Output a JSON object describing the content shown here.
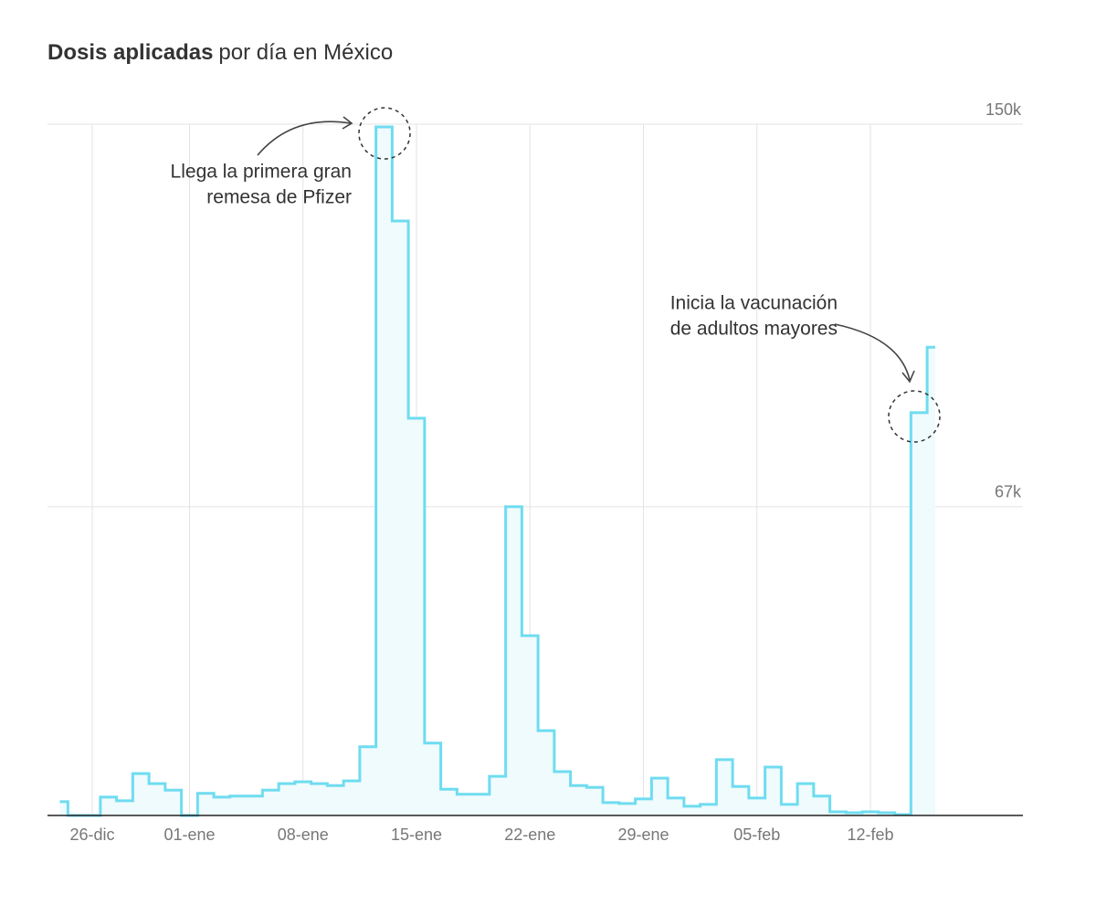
{
  "chart_data": {
    "type": "step",
    "title_parts": [
      "Dosis aplicadas",
      "por día en México"
    ],
    "categories": [
      null,
      null,
      "26-dic",
      null,
      null,
      null,
      null,
      null,
      "01-ene",
      null,
      null,
      null,
      null,
      null,
      null,
      "08-ene",
      null,
      null,
      null,
      null,
      null,
      null,
      "15-ene",
      null,
      null,
      null,
      null,
      null,
      null,
      "22-ene",
      null,
      null,
      null,
      null,
      null,
      null,
      "29-ene",
      null,
      null,
      null,
      null,
      null,
      null,
      "05-feb",
      null,
      null,
      null,
      null,
      null,
      null,
      "12-feb",
      null,
      null,
      null,
      null
    ],
    "values": [
      3000,
      0,
      0,
      4000,
      3200,
      9100,
      6900,
      5500,
      0,
      4800,
      4000,
      4200,
      4200,
      5500,
      6900,
      7300,
      6900,
      6500,
      7500,
      14900,
      149400,
      129000,
      86200,
      15700,
      5700,
      4600,
      4600,
      8500,
      67000,
      39000,
      18400,
      9500,
      6500,
      6100,
      2800,
      2600,
      3600,
      8100,
      3800,
      2000,
      2400,
      12100,
      6300,
      3800,
      10500,
      2400,
      6900,
      4200,
      800,
      600,
      800,
      600,
      200,
      87400,
      101600
    ],
    "color": "#6fdcf0",
    "fill": "#effbfd",
    "ylim": [
      0,
      150000
    ],
    "yticks": [
      {
        "value": 67000,
        "label": "67k"
      },
      {
        "value": 150000,
        "label": "150k"
      }
    ],
    "grid": true,
    "annotations": [
      {
        "lines": [
          "Llega la primera gran",
          "remesa de Pfizer"
        ]
      },
      {
        "lines": [
          "Inicia la vacunación",
          "de adultos mayores"
        ]
      }
    ]
  }
}
